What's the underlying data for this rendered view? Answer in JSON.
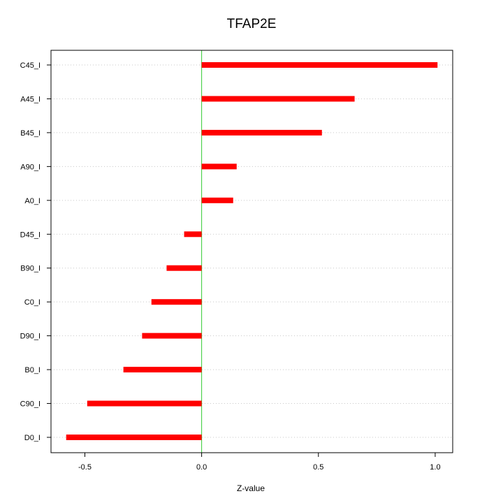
{
  "chart_data": {
    "type": "bar",
    "orientation": "horizontal",
    "title": "TFAP2E",
    "xlabel": "Z-value",
    "ylabel": "",
    "categories": [
      "C45_I",
      "A45_I",
      "B45_I",
      "A90_I",
      "A0_I",
      "D45_I",
      "B90_I",
      "C0_I",
      "D90_I",
      "B0_I",
      "C90_I",
      "D0_I"
    ],
    "values": [
      1.01,
      0.655,
      0.515,
      0.15,
      0.135,
      -0.075,
      -0.15,
      -0.215,
      -0.255,
      -0.335,
      -0.49,
      -0.58
    ],
    "xlim": [
      -0.645,
      1.075
    ],
    "xticks": [
      {
        "value": -0.5,
        "label": "-0.5"
      },
      {
        "value": 0.0,
        "label": "0.0"
      },
      {
        "value": 0.5,
        "label": "0.5"
      },
      {
        "value": 1.0,
        "label": "1.0"
      }
    ],
    "reference_line": 0,
    "grid": "horizontal dotted",
    "bar_color": "#ff0000",
    "reference_line_color": "#33cc33",
    "grid_color": "#c8c8c8"
  }
}
